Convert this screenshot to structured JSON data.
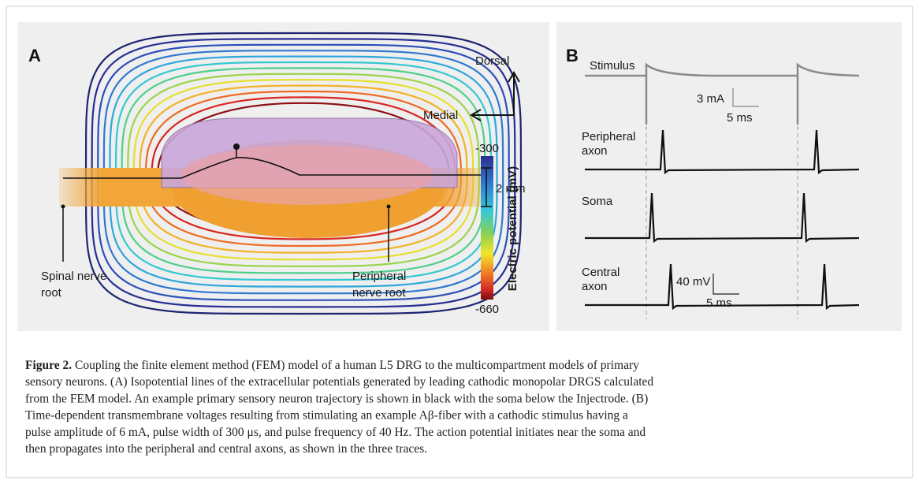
{
  "panel_a": {
    "letter": "A",
    "dorsal": "Dorsal",
    "medial": "Medial",
    "colorbar_top": "-300",
    "colorbar_bottom": "-660",
    "colorbar_title": "Electric potential (mV)",
    "scale": "2 mm",
    "spinal_label": [
      "Spinal nerve",
      "root"
    ],
    "peripheral_label": [
      "Peripheral",
      "nerve root"
    ]
  },
  "panel_b": {
    "letter": "B",
    "stimulus": "Stimulus",
    "stim_scale_y": "3 mA",
    "stim_scale_x": "5 ms",
    "peripheral": [
      "Peripheral",
      "axon"
    ],
    "soma": "Soma",
    "central": [
      "Central",
      "axon"
    ],
    "v_scale_y": "40 mV",
    "v_scale_x": "5 ms"
  },
  "caption": {
    "label": "Figure 2.",
    "lines": [
      " Coupling the finite element method (FEM) model of a human L5 DRG to the multicompartment models of primary",
      "sensory neurons. (A) Isopotential lines of the extracellular potentials generated by leading cathodic monopolar DRGS calculated",
      "from the FEM model. An example primary sensory neuron trajectory is shown in black with the soma below the Injectrode. (B)",
      "Time-dependent transmembrane voltages resulting from stimulating an example Aβ-fiber with a cathodic stimulus having a",
      "pulse amplitude of 6 mA, pulse width of 300 μs, and pulse frequency of 40 Hz. The action potential initiates near the soma and",
      "then propagates into the peripheral and central axons, as shown in the three traces."
    ]
  }
}
